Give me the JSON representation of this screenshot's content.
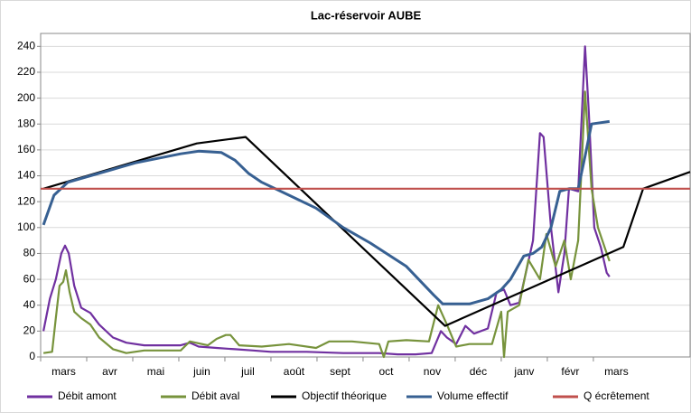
{
  "chart_data": {
    "type": "line",
    "title": "Lac-réservoir AUBE",
    "xlim": [
      0,
      14.1
    ],
    "ylim": [
      0,
      250
    ],
    "yticks": [
      0,
      20,
      40,
      60,
      80,
      100,
      120,
      140,
      160,
      180,
      200,
      220,
      240
    ],
    "xticks": [
      {
        "value": 0.5,
        "label": "mars"
      },
      {
        "value": 1.5,
        "label": "avr"
      },
      {
        "value": 2.5,
        "label": "mai"
      },
      {
        "value": 3.5,
        "label": "juin"
      },
      {
        "value": 4.5,
        "label": "juil"
      },
      {
        "value": 5.5,
        "label": "août"
      },
      {
        "value": 6.5,
        "label": "sept"
      },
      {
        "value": 7.5,
        "label": "oct"
      },
      {
        "value": 8.5,
        "label": "nov"
      },
      {
        "value": 9.5,
        "label": "déc"
      },
      {
        "value": 10.5,
        "label": "janv"
      },
      {
        "value": 11.5,
        "label": "févr"
      },
      {
        "value": 12.5,
        "label": "mars"
      }
    ],
    "grid": true,
    "legend": "bottom",
    "series": [
      {
        "name": "Débit amont",
        "color": "#7030a0",
        "x": [
          0.06,
          0.2,
          0.33,
          0.45,
          0.53,
          0.61,
          0.73,
          0.88,
          1.08,
          1.27,
          1.57,
          1.86,
          2.25,
          3.04,
          3.24,
          3.43,
          3.82,
          4.22,
          4.61,
          5.0,
          5.78,
          6.57,
          7.35,
          7.75,
          8.14,
          8.49,
          8.69,
          8.82,
          9.02,
          9.22,
          9.41,
          9.71,
          9.9,
          10.06,
          10.2,
          10.39,
          10.69,
          10.84,
          10.92,
          11.08,
          11.24,
          11.37,
          11.47,
          11.67,
          11.82,
          11.9,
          12.02,
          12.16,
          12.29,
          12.35
        ],
        "values": [
          20,
          45,
          60,
          80,
          86,
          80,
          55,
          38,
          34,
          25,
          15,
          11,
          9,
          9,
          11,
          8,
          7,
          6,
          5,
          4,
          4,
          3,
          3,
          2,
          2,
          3,
          20,
          15,
          10,
          24,
          18,
          22,
          50,
          52,
          40,
          42,
          90,
          173,
          170,
          100,
          50,
          80,
          130,
          128,
          240,
          190,
          100,
          85,
          65,
          62
        ]
      },
      {
        "name": "Débit aval",
        "color": "#77933c",
        "x": [
          0.06,
          0.25,
          0.33,
          0.41,
          0.49,
          0.55,
          0.63,
          0.73,
          0.88,
          1.08,
          1.27,
          1.57,
          1.86,
          2.25,
          3.04,
          3.24,
          3.63,
          3.82,
          4.02,
          4.12,
          4.31,
          4.8,
          5.39,
          5.98,
          6.27,
          6.76,
          7.35,
          7.45,
          7.55,
          7.94,
          8.43,
          8.63,
          8.82,
          9.02,
          9.31,
          9.8,
          10.0,
          10.06,
          10.14,
          10.39,
          10.59,
          10.84,
          10.98,
          11.18,
          11.37,
          11.51,
          11.67,
          11.82,
          11.96,
          12.1,
          12.29,
          12.35
        ],
        "values": [
          3,
          4,
          30,
          55,
          58,
          67,
          50,
          35,
          30,
          25,
          15,
          6,
          3,
          5,
          5,
          12,
          9,
          14,
          17,
          17,
          9,
          8,
          10,
          7,
          12,
          12,
          10,
          0,
          12,
          13,
          12,
          40,
          25,
          8,
          10,
          10,
          35,
          0,
          35,
          40,
          75,
          60,
          95,
          70,
          90,
          60,
          90,
          205,
          130,
          100,
          80,
          74
        ]
      },
      {
        "name": "Objectif théorique",
        "color": "#000000",
        "x": [
          0.06,
          3.39,
          4.45,
          8.78,
          12.65,
          13.08,
          14.1
        ],
        "values": [
          130,
          165,
          170,
          24,
          85,
          130,
          143
        ]
      },
      {
        "name": "Volume effectif",
        "color": "#376092",
        "x": [
          0.06,
          0.29,
          0.59,
          1.08,
          2.06,
          3.04,
          3.43,
          3.92,
          4.22,
          4.51,
          4.8,
          5.39,
          5.98,
          6.57,
          7.16,
          7.94,
          8.53,
          8.73,
          9.31,
          9.71,
          10.0,
          10.2,
          10.49,
          10.69,
          10.88,
          11.08,
          11.27,
          11.47,
          11.67,
          11.82,
          11.96,
          12.35
        ],
        "values": [
          102,
          125,
          135,
          140,
          150,
          157,
          159,
          158,
          152,
          142,
          135,
          125,
          115,
          100,
          88,
          70,
          48,
          41,
          41,
          45,
          52,
          60,
          78,
          80,
          85,
          100,
          128,
          130,
          130,
          155,
          180,
          182
        ]
      },
      {
        "name": "Q écrêtement",
        "color": "#c0504d",
        "x": [
          0,
          14.1
        ],
        "values": [
          130,
          130
        ]
      }
    ]
  }
}
